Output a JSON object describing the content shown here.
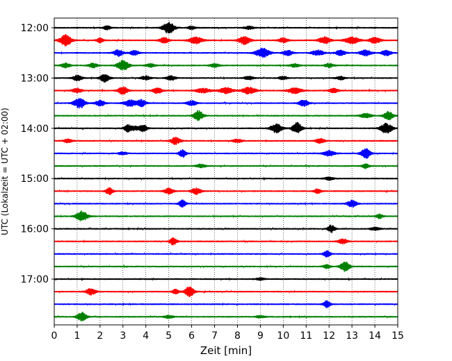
{
  "chart_data": {
    "type": "line",
    "title": "",
    "xlabel": "Zeit  [min]",
    "ylabel": "UTC (Lokalzeit = UTC + 02:00)",
    "xlim": [
      0,
      15
    ],
    "x_ticks": [
      "0",
      "1",
      "2",
      "3",
      "4",
      "5",
      "6",
      "7",
      "8",
      "9",
      "10",
      "11",
      "12",
      "13",
      "14",
      "15"
    ],
    "y_ticks": [
      {
        "label": "12:00",
        "trace": 0
      },
      {
        "label": "13:00",
        "trace": 4
      },
      {
        "label": "14:00",
        "trace": 8
      },
      {
        "label": "15:00",
        "trace": 12
      },
      {
        "label": "16:00",
        "trace": 16
      },
      {
        "label": "17:00",
        "trace": 20
      }
    ],
    "grid": "vertical dotted at each minute",
    "trace_colors": [
      "#000000",
      "#ff0000",
      "#0000ff",
      "#008000"
    ],
    "series": [
      {
        "start": "12:00",
        "bursts": [
          [
            5.0,
            1.0,
            0.25
          ],
          [
            2.3,
            0.35,
            0.15
          ],
          [
            6.0,
            0.3,
            0.15
          ],
          [
            8.5,
            0.3,
            0.2
          ]
        ]
      },
      {
        "start": "12:15",
        "bursts": [
          [
            0.5,
            1.0,
            0.25
          ],
          [
            2.0,
            0.4,
            0.15
          ],
          [
            4.8,
            0.5,
            0.2
          ],
          [
            6.2,
            0.6,
            0.3
          ],
          [
            8.3,
            0.7,
            0.25
          ],
          [
            10.0,
            0.4,
            0.2
          ],
          [
            11.8,
            0.6,
            0.25
          ],
          [
            13.0,
            0.6,
            0.3
          ],
          [
            14.0,
            0.5,
            0.25
          ]
        ]
      },
      {
        "start": "12:30",
        "bursts": [
          [
            2.8,
            0.6,
            0.2
          ],
          [
            3.5,
            0.4,
            0.2
          ],
          [
            9.1,
            0.8,
            0.3
          ],
          [
            10.2,
            0.5,
            0.2
          ],
          [
            11.5,
            0.5,
            0.25
          ],
          [
            12.5,
            0.5,
            0.2
          ],
          [
            13.6,
            0.5,
            0.25
          ],
          [
            14.5,
            0.5,
            0.2
          ]
        ]
      },
      {
        "start": "12:45",
        "bursts": [
          [
            0.5,
            0.4,
            0.2
          ],
          [
            1.7,
            0.4,
            0.2
          ],
          [
            3.0,
            0.9,
            0.25
          ],
          [
            4.2,
            0.3,
            0.2
          ],
          [
            7.0,
            0.3,
            0.2
          ],
          [
            10.5,
            0.3,
            0.2
          ],
          [
            12.0,
            0.35,
            0.2
          ]
        ]
      },
      {
        "start": "13:00",
        "bursts": [
          [
            1.0,
            0.5,
            0.2
          ],
          [
            2.2,
            0.7,
            0.2
          ],
          [
            4.0,
            0.35,
            0.2
          ],
          [
            5.1,
            0.4,
            0.2
          ],
          [
            8.5,
            0.3,
            0.2
          ],
          [
            10.0,
            0.3,
            0.2
          ],
          [
            12.5,
            0.3,
            0.2
          ]
        ]
      },
      {
        "start": "13:15",
        "bursts": [
          [
            1.0,
            0.4,
            0.2
          ],
          [
            3.0,
            0.7,
            0.2
          ],
          [
            4.5,
            0.5,
            0.2
          ],
          [
            6.5,
            0.4,
            0.3
          ],
          [
            7.5,
            0.5,
            0.3
          ],
          [
            8.5,
            0.6,
            0.3
          ],
          [
            10.5,
            0.5,
            0.3
          ],
          [
            12.2,
            0.4,
            0.2
          ]
        ]
      },
      {
        "start": "13:30",
        "bursts": [
          [
            1.1,
            0.9,
            0.25
          ],
          [
            2.0,
            0.5,
            0.2
          ],
          [
            3.3,
            0.6,
            0.25
          ],
          [
            3.8,
            0.6,
            0.2
          ],
          [
            6.0,
            0.45,
            0.2
          ],
          [
            10.9,
            0.6,
            0.2
          ]
        ]
      },
      {
        "start": "13:45",
        "bursts": [
          [
            6.3,
            0.9,
            0.2
          ],
          [
            14.6,
            0.8,
            0.2
          ],
          [
            13.6,
            0.4,
            0.25
          ]
        ]
      },
      {
        "start": "14:00",
        "bursts": [
          [
            3.2,
            0.55,
            0.15
          ],
          [
            3.9,
            0.55,
            0.15
          ],
          [
            9.7,
            0.8,
            0.25
          ],
          [
            10.6,
            1.0,
            0.2
          ],
          [
            14.5,
            0.9,
            0.25
          ],
          [
            3.5,
            0.35,
            0.3
          ]
        ]
      },
      {
        "start": "14:15",
        "bursts": [
          [
            5.3,
            0.65,
            0.2
          ],
          [
            8.0,
            0.3,
            0.2
          ],
          [
            11.6,
            0.4,
            0.2
          ],
          [
            0.6,
            0.3,
            0.2
          ]
        ]
      },
      {
        "start": "14:30",
        "bursts": [
          [
            5.6,
            0.7,
            0.15
          ],
          [
            12.0,
            0.5,
            0.25
          ],
          [
            13.6,
            0.9,
            0.2
          ],
          [
            3.0,
            0.25,
            0.2
          ]
        ]
      },
      {
        "start": "14:45",
        "bursts": [
          [
            6.4,
            0.3,
            0.2
          ],
          [
            13.6,
            0.4,
            0.15
          ]
        ]
      },
      {
        "start": "15:00",
        "bursts": [
          [
            12.0,
            0.25,
            0.2
          ]
        ]
      },
      {
        "start": "15:15",
        "bursts": [
          [
            2.4,
            0.65,
            0.15
          ],
          [
            5.0,
            0.5,
            0.2
          ],
          [
            6.2,
            0.6,
            0.2
          ],
          [
            11.5,
            0.4,
            0.15
          ]
        ]
      },
      {
        "start": "15:30",
        "bursts": [
          [
            5.6,
            0.65,
            0.15
          ],
          [
            13.0,
            0.6,
            0.2
          ]
        ]
      },
      {
        "start": "15:45",
        "bursts": [
          [
            1.2,
            0.9,
            0.25
          ],
          [
            14.2,
            0.4,
            0.15
          ]
        ]
      },
      {
        "start": "16:00",
        "bursts": [
          [
            12.1,
            0.65,
            0.15
          ],
          [
            14.0,
            0.3,
            0.2
          ]
        ]
      },
      {
        "start": "16:15",
        "bursts": [
          [
            5.2,
            0.65,
            0.15
          ],
          [
            12.6,
            0.45,
            0.2
          ]
        ]
      },
      {
        "start": "16:30",
        "bursts": [
          [
            11.9,
            0.6,
            0.15
          ]
        ]
      },
      {
        "start": "16:45",
        "bursts": [
          [
            11.9,
            0.4,
            0.15
          ],
          [
            12.7,
            0.9,
            0.2
          ]
        ]
      },
      {
        "start": "17:00",
        "bursts": [
          [
            9.0,
            0.2,
            0.2
          ]
        ]
      },
      {
        "start": "17:15",
        "bursts": [
          [
            1.6,
            0.6,
            0.2
          ],
          [
            5.9,
            0.9,
            0.2
          ],
          [
            5.3,
            0.4,
            0.15
          ]
        ]
      },
      {
        "start": "17:30",
        "bursts": [
          [
            11.9,
            0.6,
            0.15
          ]
        ]
      },
      {
        "start": "17:45",
        "bursts": [
          [
            1.2,
            0.8,
            0.2
          ],
          [
            5.0,
            0.25,
            0.2
          ],
          [
            9.0,
            0.2,
            0.2
          ]
        ]
      }
    ]
  }
}
